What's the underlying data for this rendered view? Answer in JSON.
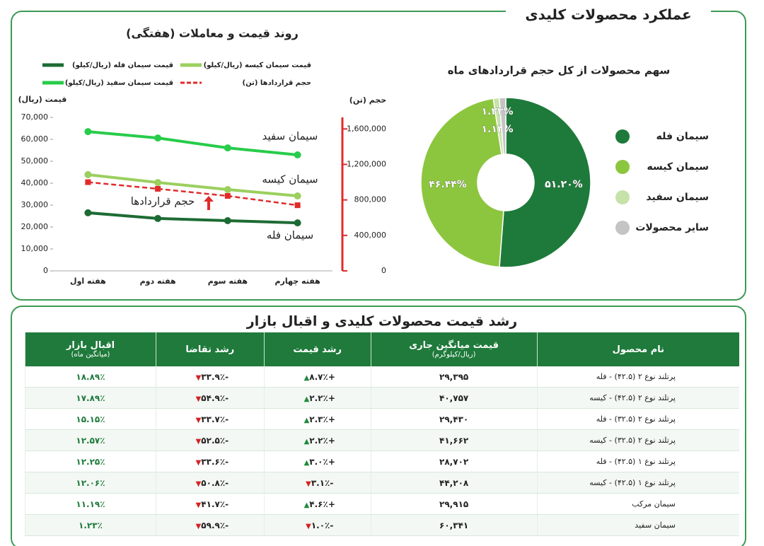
{
  "header": {
    "title": "عملکرد محصولات کلیدی"
  },
  "chart_data": [
    {
      "type": "line",
      "title": "روند قیمت و معاملات (هفتگی)",
      "y_label": "قیمت (ریال)",
      "y2_label": "حجم (تن)",
      "categories": [
        "هفته اول",
        "هفته دوم",
        "هفته سوم",
        "هفته چهارم"
      ],
      "ylim": [
        0,
        70000
      ],
      "yticks": [
        0,
        {
          "value": 10000,
          "label": "10,000"
        },
        {
          "value": 20000,
          "label": "20,000"
        },
        {
          "value": 30000,
          "label": "30,000"
        },
        {
          "value": 40000,
          "label": "40,000"
        },
        {
          "value": 50000,
          "label": "50,000"
        },
        {
          "value": 60000,
          "label": "60,000"
        },
        {
          "value": 70000,
          "label": "70,000"
        }
      ],
      "y2lim": [
        0,
        1730000
      ],
      "y2ticks": [
        0,
        {
          "value": 400000,
          "label": "400,000"
        },
        {
          "value": 800000,
          "label": "800,000"
        },
        {
          "value": 1200000,
          "label": "1,200,000"
        },
        {
          "value": 1600000,
          "label": "1,600,000"
        }
      ],
      "series": [
        {
          "name": "قیمت سیمان فله (ریال/کیلو)",
          "label": "سیمان فله",
          "color": "#1d6b34",
          "values": [
            26500,
            23900,
            22900,
            21900
          ]
        },
        {
          "name": "قیمت سیمان کیسه (ریال/کیلو)",
          "label": "سیمان کیسه",
          "color": "#9bcf5e",
          "values": [
            43900,
            40300,
            37100,
            34200
          ]
        },
        {
          "name": "قیمت سیمان سفید (ریال/کیلو)",
          "label": "سیمان سفید",
          "color": "#27cc4a",
          "values": [
            63500,
            60600,
            56100,
            52900
          ]
        },
        {
          "name": "حجم قراردادها (تن)",
          "label": "حجم قراردادها",
          "color": "#e02b2b",
          "line_style": "dashed",
          "axis": "y2",
          "values": [
            1000000,
            925000,
            845000,
            740000
          ]
        }
      ]
    },
    {
      "type": "pie",
      "title": "سهم محصولات از کل حجم قراردادهای ماه",
      "donut": true,
      "categories": [
        "سیمان فله",
        "سیمان کیسه",
        "سیمان سفید",
        "سایر محصولات"
      ],
      "values": [
        51.2,
        46.44,
        1.13,
        1.23
      ],
      "value_labels": [
        "۵۱.۲۰%",
        "۴۶.۴۴%",
        "۱.۱۳%",
        "۱.۲۳%"
      ],
      "colors": [
        "#1e7a3a",
        "#8cc63f",
        "#c7e2a8",
        "#c4c4c4"
      ]
    }
  ],
  "table": {
    "title": "رشد قیمت محصولات کلیدی و اقبال بازار",
    "columns": [
      {
        "title": "نام محصول"
      },
      {
        "title": "قیمت میانگین جاری",
        "subtitle": "(ریال/کیلوگرم)"
      },
      {
        "title": "رشد قیمت"
      },
      {
        "title": "رشد تقاضا"
      },
      {
        "title": "اقبال بازار",
        "subtitle": "(میانگین ماه)"
      }
    ],
    "rows": [
      [
        "پرتلند نوع ۲ (۴۲.۵) - فله",
        "۲۹,۳۹۵",
        "+۸.۷٪",
        "-۳۳.۹٪",
        "۱۸.۸۹٪"
      ],
      [
        "پرتلند نوع ۲ (۴۲.۵) - کیسه",
        "۴۰,۷۵۷",
        "+۲.۲٪",
        "-۵۴.۹٪",
        "۱۷.۸۹٪"
      ],
      [
        "پرتلند نوع ۲ (۳۲.۵) - فله",
        "۲۹,۴۳۰",
        "+۲.۳٪",
        "-۳۳.۷٪",
        "۱۵.۱۵٪"
      ],
      [
        "پرتلند نوع ۲ (۳۲.۵) - کیسه",
        "۴۱,۶۶۲",
        "+۲.۲٪",
        "-۵۲.۵٪",
        "۱۲.۵۷٪"
      ],
      [
        "پرتلند نوع ۱ (۴۲.۵) - فله",
        "۲۸,۷۰۲",
        "+۳.۰٪",
        "-۳۳.۶٪",
        "۱۲.۲۵٪"
      ],
      [
        "پرتلند نوع ۱ (۴۲.۵) - کیسه",
        "۴۴,۲۰۸",
        "-۳.۱٪",
        "-۵۰.۸٪",
        "۱۲.۰۶٪"
      ],
      [
        "سیمان مرکب",
        "۲۹,۹۱۵",
        "+۴.۶٪",
        "-۴۱.۷٪",
        "۱۱.۱۹٪"
      ],
      [
        "سیمان سفید",
        "۶۰,۳۴۱",
        "-۱.۰٪",
        "-۵۹.۹٪",
        "۱.۲۳٪"
      ]
    ]
  }
}
